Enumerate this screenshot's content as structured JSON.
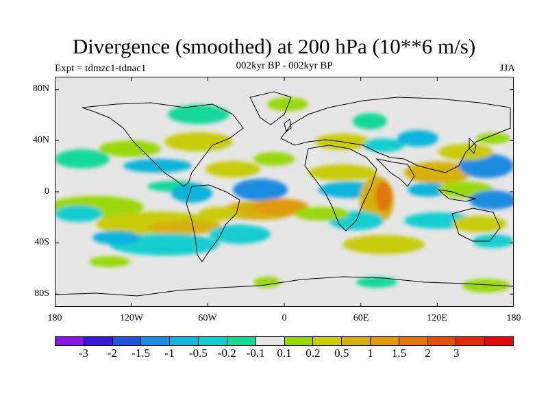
{
  "title": "Divergence (smoothed) at 200 hPa (10**6 m/s)",
  "subtitle_left": "Expt = tdmzc1-tdnac1",
  "subtitle_center": "002kyr BP - 002kyr BP",
  "subtitle_right": "JJA",
  "lat_labels": [
    "80N",
    "40N",
    "0",
    "40S",
    "80S"
  ],
  "lon_labels": [
    "180",
    "120W",
    "60W",
    "0",
    "60E",
    "120E",
    "180"
  ],
  "colorbar": {
    "colors": [
      "#8a16e6",
      "#3a1ad8",
      "#1e55d6",
      "#1e8be0",
      "#10b4dc",
      "#12cdd0",
      "#12d89a",
      "#e6e6e6",
      "#9ad80a",
      "#c8cc0a",
      "#d6b00a",
      "#e09a0a",
      "#e0760a",
      "#e0520a",
      "#e02a0a",
      "#e00a0a"
    ],
    "labels": [
      "-3",
      "-2",
      "-1.5",
      "-1",
      "-0.5",
      "-0.2",
      "-0.1",
      "0.1",
      "0.2",
      "0.5",
      "1",
      "1.5",
      "2",
      "3"
    ]
  },
  "map": {
    "projection": "equirectangular",
    "lon_range": [
      -180,
      180
    ],
    "lat_range": [
      -90,
      90
    ],
    "background_color": "#e6e6e6"
  }
}
